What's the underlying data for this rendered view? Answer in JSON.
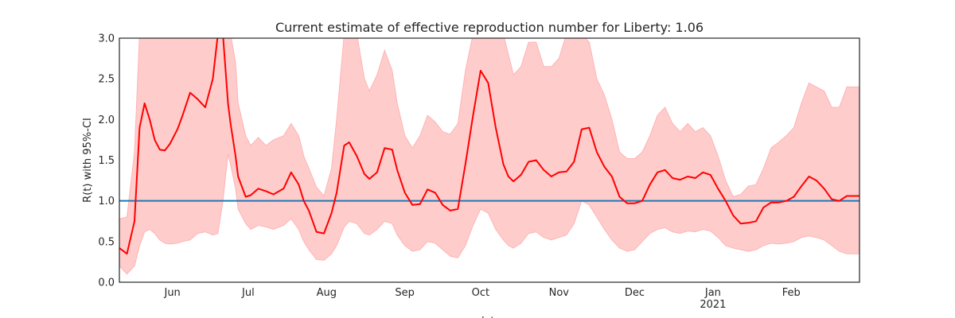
{
  "chart_data": {
    "type": "line",
    "title": "Current estimate of effective reproduction number for Liberty: 1.06",
    "xlabel": "date",
    "ylabel": "R(t) with 95%-CI",
    "ylim": [
      0,
      3.0
    ],
    "xlim": [
      "2020-05-11",
      "2021-02-28"
    ],
    "yticks": [
      "0.0",
      "0.5",
      "1.0",
      "1.5",
      "2.0",
      "2.5",
      "3.0"
    ],
    "xticks": [
      {
        "date": "2020-06-01",
        "label": "Jun"
      },
      {
        "date": "2020-07-01",
        "label": "Jul"
      },
      {
        "date": "2020-08-01",
        "label": "Aug"
      },
      {
        "date": "2020-09-01",
        "label": "Sep"
      },
      {
        "date": "2020-10-01",
        "label": "Oct"
      },
      {
        "date": "2020-11-01",
        "label": "Nov"
      },
      {
        "date": "2020-12-01",
        "label": "Dec"
      },
      {
        "date": "2021-01-01",
        "label": "Jan",
        "sublabel": "2021"
      },
      {
        "date": "2021-02-01",
        "label": "Feb"
      }
    ],
    "reference_line": {
      "y": 1.0,
      "color": "#1f77b4"
    },
    "colors": {
      "estimate": "#ff0000",
      "ci_fill": "#ffcccc",
      "ci_edge": "#ffb3b3"
    },
    "grid": false,
    "series": [
      {
        "role": "estimate",
        "x": [
          "2020-05-11",
          "2020-05-14",
          "2020-05-17",
          "2020-05-19",
          "2020-05-21",
          "2020-05-23",
          "2020-05-25",
          "2020-05-27",
          "2020-05-29",
          "2020-05-31",
          "2020-06-03",
          "2020-06-05",
          "2020-06-08",
          "2020-06-11",
          "2020-06-14",
          "2020-06-17",
          "2020-06-19",
          "2020-06-21",
          "2020-06-23",
          "2020-06-24",
          "2020-06-26",
          "2020-06-27",
          "2020-06-30",
          "2020-07-02",
          "2020-07-05",
          "2020-07-08",
          "2020-07-11",
          "2020-07-15",
          "2020-07-18",
          "2020-07-21",
          "2020-07-23",
          "2020-07-25",
          "2020-07-28",
          "2020-07-31",
          "2020-08-03",
          "2020-08-05",
          "2020-08-08",
          "2020-08-10",
          "2020-08-13",
          "2020-08-16",
          "2020-08-18",
          "2020-08-21",
          "2020-08-24",
          "2020-08-27",
          "2020-08-29",
          "2020-09-01",
          "2020-09-04",
          "2020-09-07",
          "2020-09-10",
          "2020-09-13",
          "2020-09-16",
          "2020-09-19",
          "2020-09-22",
          "2020-09-25",
          "2020-09-28",
          "2020-10-01",
          "2020-10-04",
          "2020-10-07",
          "2020-10-10",
          "2020-10-12",
          "2020-10-14",
          "2020-10-17",
          "2020-10-20",
          "2020-10-23",
          "2020-10-26",
          "2020-10-29",
          "2020-11-01",
          "2020-11-04",
          "2020-11-07",
          "2020-11-10",
          "2020-11-13",
          "2020-11-16",
          "2020-11-19",
          "2020-11-22",
          "2020-11-25",
          "2020-11-28",
          "2020-12-01",
          "2020-12-04",
          "2020-12-07",
          "2020-12-10",
          "2020-12-13",
          "2020-12-16",
          "2020-12-19",
          "2020-12-22",
          "2020-12-25",
          "2020-12-28",
          "2020-12-31",
          "2021-01-03",
          "2021-01-06",
          "2021-01-09",
          "2021-01-12",
          "2021-01-15",
          "2021-01-18",
          "2021-01-21",
          "2021-01-24",
          "2021-01-27",
          "2021-01-30",
          "2021-02-02",
          "2021-02-05",
          "2021-02-08",
          "2021-02-11",
          "2021-02-14",
          "2021-02-17",
          "2021-02-20",
          "2021-02-23",
          "2021-02-26",
          "2021-02-28"
        ],
        "values": [
          0.42,
          0.35,
          0.75,
          1.9,
          2.2,
          2.0,
          1.75,
          1.63,
          1.62,
          1.7,
          1.88,
          2.05,
          2.33,
          2.25,
          2.15,
          2.5,
          3.05,
          3.05,
          2.2,
          1.95,
          1.55,
          1.3,
          1.05,
          1.07,
          1.15,
          1.12,
          1.08,
          1.15,
          1.35,
          1.2,
          1.0,
          0.88,
          0.62,
          0.6,
          0.85,
          1.1,
          1.68,
          1.72,
          1.55,
          1.33,
          1.27,
          1.35,
          1.65,
          1.63,
          1.38,
          1.1,
          0.95,
          0.96,
          1.14,
          1.1,
          0.95,
          0.88,
          0.9,
          1.45,
          2.05,
          2.6,
          2.45,
          1.9,
          1.45,
          1.3,
          1.24,
          1.32,
          1.48,
          1.5,
          1.38,
          1.3,
          1.35,
          1.36,
          1.48,
          1.88,
          1.9,
          1.6,
          1.42,
          1.3,
          1.05,
          0.97,
          0.97,
          1.0,
          1.2,
          1.35,
          1.38,
          1.28,
          1.26,
          1.3,
          1.28,
          1.35,
          1.32,
          1.15,
          1.0,
          0.82,
          0.72,
          0.73,
          0.75,
          0.92,
          0.98,
          0.98,
          1.0,
          1.05,
          1.18,
          1.3,
          1.25,
          1.15,
          1.02,
          1.0,
          1.06,
          1.06,
          1.06
        ]
      },
      {
        "role": "ci_upper",
        "x": [
          "2020-05-11",
          "2020-05-14",
          "2020-05-17",
          "2020-05-19",
          "2020-05-21",
          "2020-05-23",
          "2020-05-25",
          "2020-05-27",
          "2020-05-29",
          "2020-05-31",
          "2020-06-03",
          "2020-06-05",
          "2020-06-08",
          "2020-06-11",
          "2020-06-14",
          "2020-06-17",
          "2020-06-19",
          "2020-06-21",
          "2020-06-23",
          "2020-06-24",
          "2020-06-26",
          "2020-06-27",
          "2020-06-30",
          "2020-07-02",
          "2020-07-05",
          "2020-07-08",
          "2020-07-11",
          "2020-07-15",
          "2020-07-18",
          "2020-07-21",
          "2020-07-23",
          "2020-07-25",
          "2020-07-28",
          "2020-07-31",
          "2020-08-03",
          "2020-08-05",
          "2020-08-08",
          "2020-08-10",
          "2020-08-13",
          "2020-08-16",
          "2020-08-18",
          "2020-08-21",
          "2020-08-24",
          "2020-08-27",
          "2020-08-29",
          "2020-09-01",
          "2020-09-04",
          "2020-09-07",
          "2020-09-10",
          "2020-09-13",
          "2020-09-16",
          "2020-09-19",
          "2020-09-22",
          "2020-09-25",
          "2020-09-28",
          "2020-10-01",
          "2020-10-04",
          "2020-10-07",
          "2020-10-10",
          "2020-10-12",
          "2020-10-14",
          "2020-10-17",
          "2020-10-20",
          "2020-10-23",
          "2020-10-26",
          "2020-10-29",
          "2020-11-01",
          "2020-11-04",
          "2020-11-07",
          "2020-11-10",
          "2020-11-13",
          "2020-11-16",
          "2020-11-19",
          "2020-11-22",
          "2020-11-25",
          "2020-11-28",
          "2020-12-01",
          "2020-12-04",
          "2020-12-07",
          "2020-12-10",
          "2020-12-13",
          "2020-12-16",
          "2020-12-19",
          "2020-12-22",
          "2020-12-25",
          "2020-12-28",
          "2020-12-31",
          "2021-01-03",
          "2021-01-06",
          "2021-01-09",
          "2021-01-12",
          "2021-01-15",
          "2021-01-18",
          "2021-01-21",
          "2021-01-24",
          "2021-01-27",
          "2021-01-30",
          "2021-02-02",
          "2021-02-05",
          "2021-02-08",
          "2021-02-11",
          "2021-02-14",
          "2021-02-17",
          "2021-02-20",
          "2021-02-23",
          "2021-02-26",
          "2021-02-28"
        ],
        "values": [
          0.78,
          0.8,
          1.6,
          3.05,
          3.05,
          3.05,
          3.05,
          3.05,
          3.05,
          3.05,
          3.05,
          3.05,
          3.05,
          3.05,
          3.05,
          3.05,
          3.05,
          3.05,
          3.05,
          3.05,
          2.7,
          2.2,
          1.8,
          1.68,
          1.78,
          1.68,
          1.75,
          1.8,
          1.95,
          1.8,
          1.55,
          1.4,
          1.17,
          1.06,
          1.4,
          2.0,
          3.05,
          3.05,
          3.05,
          2.5,
          2.35,
          2.55,
          2.85,
          2.6,
          2.2,
          1.8,
          1.65,
          1.8,
          2.05,
          1.97,
          1.85,
          1.82,
          1.95,
          2.6,
          3.05,
          3.05,
          3.05,
          3.05,
          3.05,
          2.8,
          2.55,
          2.65,
          2.95,
          2.95,
          2.65,
          2.65,
          2.75,
          3.05,
          3.05,
          3.05,
          2.95,
          2.5,
          2.3,
          2.0,
          1.6,
          1.52,
          1.52,
          1.6,
          1.8,
          2.05,
          2.15,
          1.95,
          1.85,
          1.95,
          1.85,
          1.9,
          1.8,
          1.55,
          1.25,
          1.05,
          1.08,
          1.18,
          1.2,
          1.4,
          1.65,
          1.72,
          1.8,
          1.9,
          2.2,
          2.45,
          2.4,
          2.35,
          2.15,
          2.15,
          2.4,
          2.4,
          2.4
        ]
      },
      {
        "role": "ci_lower",
        "x": [
          "2020-05-11",
          "2020-05-14",
          "2020-05-17",
          "2020-05-19",
          "2020-05-21",
          "2020-05-23",
          "2020-05-25",
          "2020-05-27",
          "2020-05-29",
          "2020-05-31",
          "2020-06-03",
          "2020-06-05",
          "2020-06-08",
          "2020-06-11",
          "2020-06-14",
          "2020-06-17",
          "2020-06-19",
          "2020-06-21",
          "2020-06-23",
          "2020-06-24",
          "2020-06-26",
          "2020-06-27",
          "2020-06-30",
          "2020-07-02",
          "2020-07-05",
          "2020-07-08",
          "2020-07-11",
          "2020-07-15",
          "2020-07-18",
          "2020-07-21",
          "2020-07-23",
          "2020-07-25",
          "2020-07-28",
          "2020-07-31",
          "2020-08-03",
          "2020-08-05",
          "2020-08-08",
          "2020-08-10",
          "2020-08-13",
          "2020-08-16",
          "2020-08-18",
          "2020-08-21",
          "2020-08-24",
          "2020-08-27",
          "2020-08-29",
          "2020-09-01",
          "2020-09-04",
          "2020-09-07",
          "2020-09-10",
          "2020-09-13",
          "2020-09-16",
          "2020-09-19",
          "2020-09-22",
          "2020-09-25",
          "2020-09-28",
          "2020-10-01",
          "2020-10-04",
          "2020-10-07",
          "2020-10-10",
          "2020-10-12",
          "2020-10-14",
          "2020-10-17",
          "2020-10-20",
          "2020-10-23",
          "2020-10-26",
          "2020-10-29",
          "2020-11-01",
          "2020-11-04",
          "2020-11-07",
          "2020-11-10",
          "2020-11-13",
          "2020-11-16",
          "2020-11-19",
          "2020-11-22",
          "2020-11-25",
          "2020-11-28",
          "2020-12-01",
          "2020-12-04",
          "2020-12-07",
          "2020-12-10",
          "2020-12-13",
          "2020-12-16",
          "2020-12-19",
          "2020-12-22",
          "2020-12-25",
          "2020-12-28",
          "2020-12-31",
          "2021-01-03",
          "2021-01-06",
          "2021-01-09",
          "2021-01-12",
          "2021-01-15",
          "2021-01-18",
          "2021-01-21",
          "2021-01-24",
          "2021-01-27",
          "2021-01-30",
          "2021-02-02",
          "2021-02-05",
          "2021-02-08",
          "2021-02-11",
          "2021-02-14",
          "2021-02-17",
          "2021-02-20",
          "2021-02-23",
          "2021-02-26",
          "2021-02-28"
        ],
        "values": [
          0.2,
          0.1,
          0.2,
          0.45,
          0.62,
          0.65,
          0.6,
          0.52,
          0.48,
          0.47,
          0.48,
          0.5,
          0.52,
          0.6,
          0.62,
          0.58,
          0.6,
          1.0,
          1.58,
          1.45,
          1.15,
          0.9,
          0.72,
          0.65,
          0.7,
          0.68,
          0.65,
          0.7,
          0.78,
          0.65,
          0.5,
          0.4,
          0.28,
          0.27,
          0.35,
          0.45,
          0.68,
          0.75,
          0.72,
          0.6,
          0.58,
          0.65,
          0.75,
          0.72,
          0.58,
          0.45,
          0.38,
          0.4,
          0.5,
          0.48,
          0.4,
          0.32,
          0.3,
          0.45,
          0.7,
          0.9,
          0.85,
          0.65,
          0.52,
          0.45,
          0.42,
          0.48,
          0.6,
          0.62,
          0.55,
          0.52,
          0.55,
          0.58,
          0.72,
          1.0,
          0.95,
          0.8,
          0.65,
          0.52,
          0.42,
          0.38,
          0.4,
          0.5,
          0.6,
          0.65,
          0.67,
          0.62,
          0.6,
          0.63,
          0.62,
          0.65,
          0.63,
          0.55,
          0.45,
          0.42,
          0.4,
          0.38,
          0.4,
          0.45,
          0.48,
          0.47,
          0.48,
          0.5,
          0.55,
          0.57,
          0.55,
          0.52,
          0.45,
          0.38,
          0.35,
          0.35,
          0.35
        ]
      }
    ]
  }
}
